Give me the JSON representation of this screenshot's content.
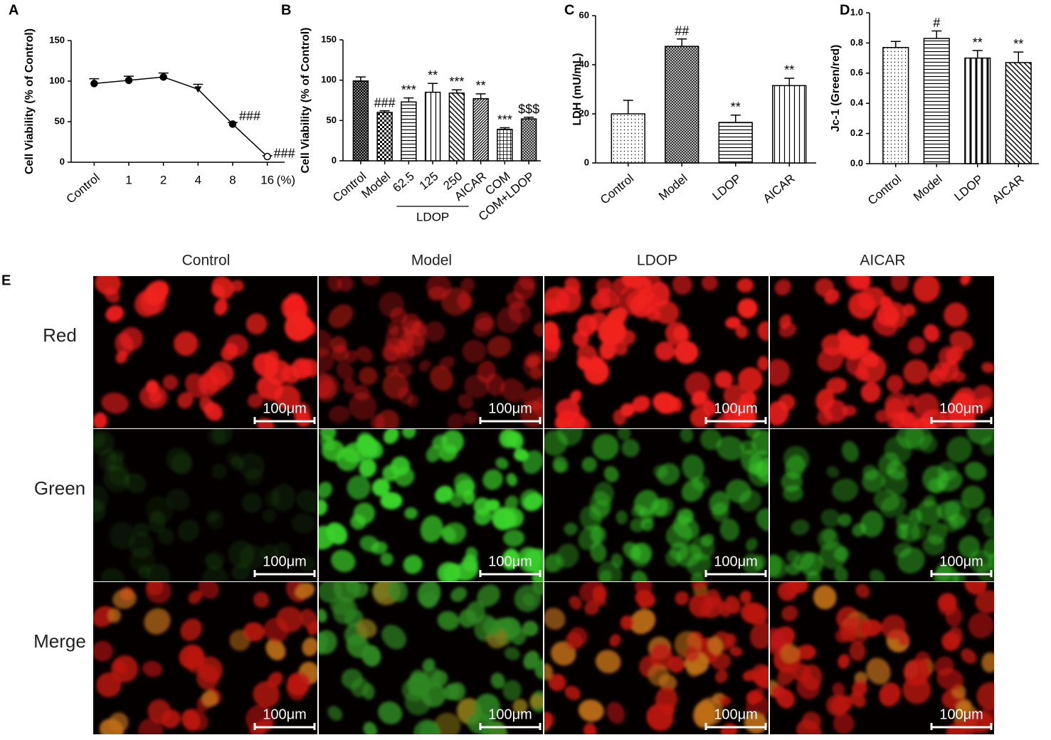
{
  "chart_data": [
    {
      "type": "line",
      "panel": "A",
      "y_label": "Cell Viability (% of Control)",
      "x_unit": "(%)",
      "categories": [
        "Control",
        "1",
        "2",
        "4",
        "8",
        "16"
      ],
      "values": [
        97,
        101,
        105,
        90,
        47,
        7
      ],
      "errors": [
        6,
        5,
        5,
        6,
        2,
        1
      ],
      "annotations": [
        null,
        null,
        null,
        null,
        "###",
        "###"
      ],
      "markers": [
        "circle",
        "circle",
        "circle",
        "triangle",
        "circle",
        "open-circle"
      ],
      "color": "#000000",
      "ylim": [
        0,
        150
      ],
      "yticks": [
        0,
        50,
        100,
        150
      ]
    },
    {
      "type": "bar",
      "panel": "B",
      "y_label": "Cell Viability (% of Control)",
      "categories": [
        "Control",
        "Model",
        "62.5",
        "125",
        "250",
        "AICAR",
        "COM",
        "COM+LDOP"
      ],
      "values": [
        99,
        60,
        73,
        85,
        84,
        77,
        39,
        52
      ],
      "errors": [
        5,
        2,
        5,
        11,
        4,
        6,
        2,
        2
      ],
      "annotations": [
        null,
        "###",
        "***",
        "**",
        "***",
        "**",
        "***",
        "$$$"
      ],
      "groups": [
        {
          "label": "LDOP",
          "categories": [
            "62.5",
            "125",
            "250"
          ]
        }
      ],
      "patterns": [
        "crosshatch",
        "checker",
        "hlines",
        "vlines",
        "diag",
        "diag-dense",
        "grid",
        "checker-dark"
      ],
      "color": "#000000",
      "ylim": [
        0,
        150
      ],
      "yticks": [
        0,
        50,
        100,
        150
      ]
    },
    {
      "type": "bar",
      "panel": "C",
      "y_label": "LDH (mU/mL)",
      "categories": [
        "Control",
        "Model",
        "LDOP",
        "AICAR"
      ],
      "values": [
        20,
        47.5,
        16.5,
        31.5
      ],
      "errors": [
        5.5,
        3,
        3,
        3
      ],
      "annotations": [
        null,
        "##",
        "**",
        "**"
      ],
      "patterns": [
        "dots",
        "checker-dark",
        "hlines",
        "vlines"
      ],
      "color": "#000000",
      "ylim": [
        0,
        60
      ],
      "yticks": [
        0,
        20,
        40,
        60
      ]
    },
    {
      "type": "bar",
      "panel": "D",
      "y_label": "Jc-1 (Green/red)",
      "categories": [
        "Control",
        "Model",
        "LDOP",
        "AICAR"
      ],
      "values": [
        0.77,
        0.83,
        0.7,
        0.67
      ],
      "errors": [
        0.04,
        0.05,
        0.05,
        0.07
      ],
      "annotations": [
        null,
        "#",
        "**",
        "**"
      ],
      "patterns": [
        "dots",
        "hlines",
        "vlines-thick",
        "diag"
      ],
      "color": "#000000",
      "ylim": [
        0,
        1
      ],
      "yticks": [
        {
          "value": 0,
          "label": "0.0"
        },
        0.2,
        0.4,
        0.6,
        0.8,
        {
          "value": 1,
          "label": "1.0"
        }
      ]
    }
  ],
  "panel_e": {
    "panel": "E",
    "columns": [
      "Control",
      "Model",
      "LDOP",
      "AICAR"
    ],
    "rows": [
      "Red",
      "Green",
      "Merge"
    ],
    "scale_bar": "100μm"
  }
}
